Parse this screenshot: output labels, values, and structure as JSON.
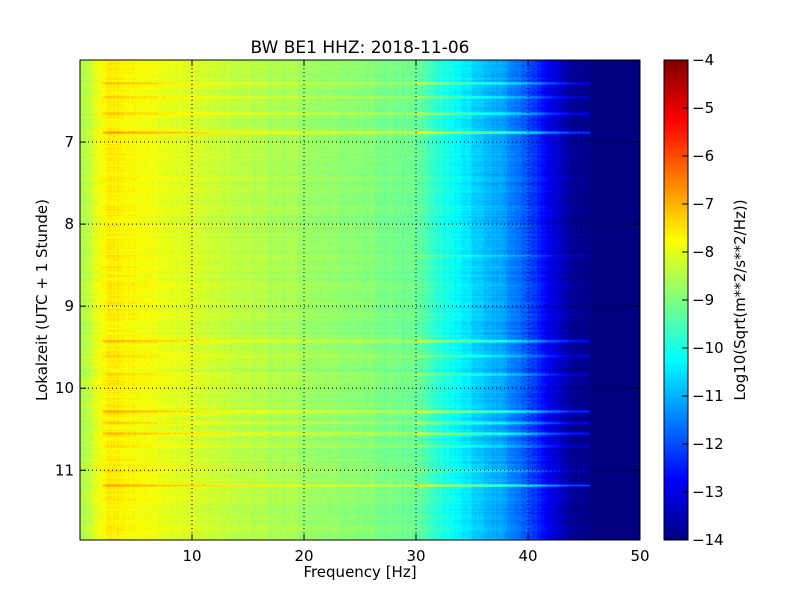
{
  "chart_data": {
    "type": "heatmap",
    "title": "BW BE1 HHZ: 2018-11-06",
    "xlabel": "Frequency [Hz]",
    "ylabel": "Lokalzeit (UTC + 1 Stunde)",
    "xlim": [
      0,
      50
    ],
    "ylim": [
      6.0,
      11.85
    ],
    "y_inverted": true,
    "x_ticks": [
      10,
      20,
      30,
      40,
      50
    ],
    "x_tick_labels": [
      "10",
      "20",
      "30",
      "40",
      "50"
    ],
    "y_ticks": [
      7,
      8,
      9,
      10,
      11
    ],
    "y_tick_labels": [
      "7",
      "8",
      "9",
      "10",
      "11"
    ],
    "grid": true,
    "colormap": "jet",
    "colorbar": {
      "label": "Log10(Sqrt(m**2/s**2/Hz))",
      "vmin": -14,
      "vmax": -4,
      "ticks": [
        -4,
        -5,
        -6,
        -7,
        -8,
        -9,
        -10,
        -11,
        -12,
        -13,
        -14
      ],
      "tick_labels": [
        "−4",
        "−5",
        "−6",
        "−7",
        "−8",
        "−9",
        "−10",
        "−11",
        "−12",
        "−13",
        "−14"
      ]
    },
    "spectrum_profile": {
      "frequency_hz": [
        0,
        1,
        2,
        3,
        5,
        8,
        12,
        18,
        25,
        30,
        32,
        35,
        38,
        40,
        42,
        44,
        46,
        50
      ],
      "log_amplitude": [
        -8.6,
        -8.2,
        -7.7,
        -7.6,
        -7.8,
        -8.0,
        -8.3,
        -8.6,
        -8.9,
        -9.2,
        -9.9,
        -10.6,
        -11.3,
        -12.0,
        -13.0,
        -13.8,
        -14.0,
        -14.0
      ]
    },
    "bright_bands": [
      {
        "time_h": 6.28,
        "boost": 1.0
      },
      {
        "time_h": 6.45,
        "boost": 0.6
      },
      {
        "time_h": 6.65,
        "boost": 1.0
      },
      {
        "time_h": 6.88,
        "boost": 1.5
      },
      {
        "time_h": 8.38,
        "boost": 0.5
      },
      {
        "time_h": 9.42,
        "boost": 1.2
      },
      {
        "time_h": 9.6,
        "boost": 0.7
      },
      {
        "time_h": 9.83,
        "boost": 0.8
      },
      {
        "time_h": 10.28,
        "boost": 1.6
      },
      {
        "time_h": 10.42,
        "boost": 1.0
      },
      {
        "time_h": 10.55,
        "boost": 1.2
      },
      {
        "time_h": 10.7,
        "boost": 0.6
      },
      {
        "time_h": 11.0,
        "boost": 0.7
      },
      {
        "time_h": 11.18,
        "boost": 1.6
      }
    ]
  }
}
